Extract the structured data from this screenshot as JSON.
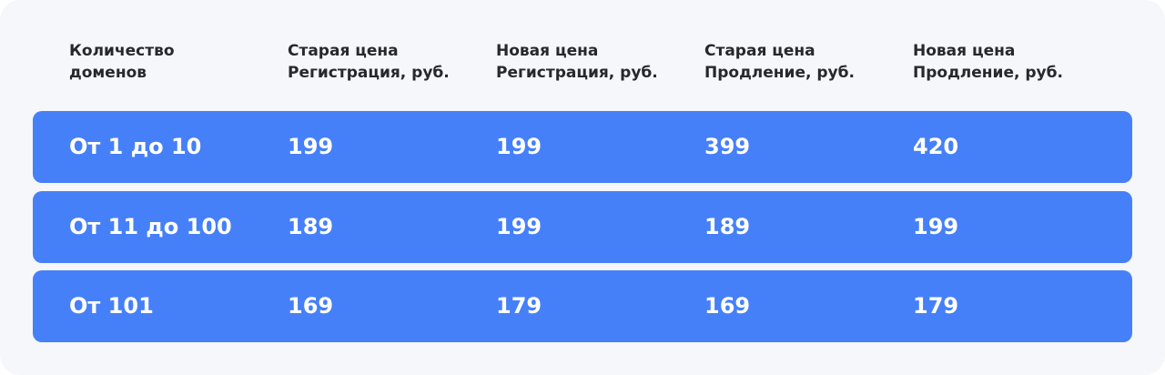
{
  "table": {
    "headers": [
      "Количество\nдоменов",
      "Старая цена\nРегистрация, руб.",
      "Новая цена\nРегистрация, руб.",
      "Старая цена\nПродление, руб.",
      "Новая цена\nПродление, руб."
    ],
    "rows": [
      [
        "От 1 до 10",
        "199",
        "199",
        "399",
        "420"
      ],
      [
        "От 11 до 100",
        "189",
        "199",
        "189",
        "199"
      ],
      [
        "От 101",
        "169",
        "179",
        "169",
        "179"
      ]
    ],
    "colors": {
      "row_background": "#4680f8",
      "card_background": "#f5f7fa",
      "header_text": "#26282c"
    }
  }
}
